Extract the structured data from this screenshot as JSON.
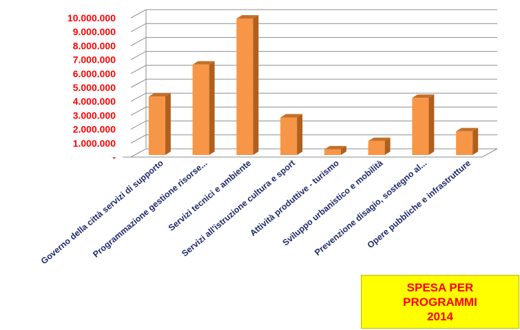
{
  "chart_data": {
    "type": "bar",
    "title": [
      "SPESA PER",
      "PROGRAMMI",
      "2014"
    ],
    "categories": [
      "Governo della città servizi di supporto",
      "Programmazione gestione risorse...",
      "Servizi tecnici e ambiente",
      "Servizi all'istruzione cultura e sport",
      "Attività produttive - turismo",
      "Sviluppo urbanistico e mobilità",
      "Prevenzione disagio, sostegno al...",
      "Opere pubbliche e infrastrutture"
    ],
    "values": [
      4200000,
      6500000,
      9800000,
      2700000,
      400000,
      1000000,
      4100000,
      1700000
    ],
    "ylim": [
      0,
      10000000
    ],
    "yticks": [
      {
        "value": 0,
        "label": "-"
      },
      {
        "value": 1000000,
        "label": "1.000.000"
      },
      {
        "value": 2000000,
        "label": "2.000.000"
      },
      {
        "value": 3000000,
        "label": "3.000.000"
      },
      {
        "value": 4000000,
        "label": "4.000.000"
      },
      {
        "value": 5000000,
        "label": "5.000.000"
      },
      {
        "value": 6000000,
        "label": "6.000.000"
      },
      {
        "value": 7000000,
        "label": "7.000.000"
      },
      {
        "value": 8000000,
        "label": "8.000.000"
      },
      {
        "value": 9000000,
        "label": "9.000.000"
      },
      {
        "value": 10000000,
        "label": "10.000.000"
      }
    ],
    "grid": true,
    "colors": {
      "bar_front": "#f79646",
      "bar_side": "#b05f1c",
      "bar_top": "#c4702b",
      "tick_y": "#ff0000",
      "tick_x": "#1f2a6b",
      "title_bg": "#ffff00",
      "title_text": "#ff0000"
    }
  }
}
